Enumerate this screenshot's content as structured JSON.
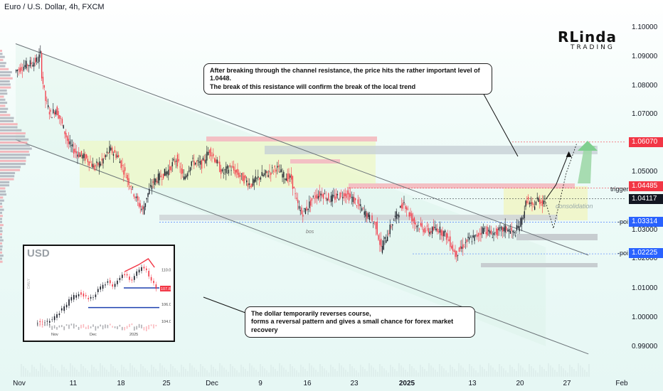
{
  "title": "Euro / U.S. Dollar, 4h, FXCM",
  "logo": {
    "main": "RLinda",
    "sub": "TRADING"
  },
  "callouts": {
    "top": "After breaking through the channel resistance, the price hits the rather important level of 1.0448.\nThe break of this resistance will confirm the break of the local trend",
    "bottom": "The dollar temporarily reverses course,\nforms a reversal pattern and gives a small chance for forex market recovery"
  },
  "labels": {
    "trigger": "trigger",
    "poi1": "-poi",
    "poi2": "-poi",
    "consolidation": "consolidation",
    "bos": "bos"
  },
  "colors": {
    "red_pill": "#f23645",
    "blue_pill": "#2962ff",
    "dark_pill": "#131722",
    "bull": "#131722",
    "bear": "#f23645"
  },
  "chart_data": {
    "type": "candlestick",
    "title": "Euro / U.S. Dollar, 4h, FXCM",
    "y_ticks": [
      "1.10000",
      "1.09000",
      "1.08000",
      "1.07000",
      "1.05000",
      "1.03000",
      "1.02000",
      "1.01000",
      "1.00000",
      "0.99000"
    ],
    "x_ticks": [
      "Nov",
      "11",
      "18",
      "25",
      "Dec",
      "9",
      "16",
      "23",
      "2025",
      "13",
      "20",
      "27",
      "Feb"
    ],
    "price_labels": [
      {
        "text": "1.06070",
        "style": "red"
      },
      {
        "text": "1.04485",
        "style": "red"
      },
      {
        "text": "1.04117",
        "style": "dark"
      },
      {
        "text": "1.03314",
        "style": "blue"
      },
      {
        "text": "1.02225",
        "style": "blue"
      }
    ],
    "path_points": [
      [
        0,
        1.085
      ],
      [
        8,
        1.087
      ],
      [
        14,
        1.088
      ],
      [
        18,
        1.089
      ],
      [
        20,
        1.091
      ],
      [
        21,
        1.084
      ],
      [
        24,
        1.075
      ],
      [
        28,
        1.07
      ],
      [
        32,
        1.072
      ],
      [
        36,
        1.068
      ],
      [
        42,
        1.06
      ],
      [
        48,
        1.057
      ],
      [
        56,
        1.055
      ],
      [
        62,
        1.052
      ],
      [
        68,
        1.054
      ],
      [
        74,
        1.058
      ],
      [
        80,
        1.056
      ],
      [
        86,
        1.05
      ],
      [
        92,
        1.044
      ],
      [
        96,
        1.04
      ],
      [
        100,
        1.037
      ],
      [
        103,
        1.042
      ],
      [
        108,
        1.047
      ],
      [
        114,
        1.049
      ],
      [
        120,
        1.051
      ],
      [
        126,
        1.055
      ],
      [
        132,
        1.048
      ],
      [
        138,
        1.054
      ],
      [
        146,
        1.053
      ],
      [
        152,
        1.058
      ],
      [
        156,
        1.055
      ],
      [
        162,
        1.05
      ],
      [
        168,
        1.052
      ],
      [
        176,
        1.049
      ],
      [
        184,
        1.046
      ],
      [
        192,
        1.049
      ],
      [
        198,
        1.05
      ],
      [
        204,
        1.052
      ],
      [
        210,
        1.049
      ],
      [
        216,
        1.048
      ],
      [
        220,
        1.04
      ],
      [
        224,
        1.036
      ],
      [
        228,
        1.038
      ],
      [
        234,
        1.042
      ],
      [
        240,
        1.043
      ],
      [
        246,
        1.041
      ],
      [
        252,
        1.042
      ],
      [
        258,
        1.043
      ],
      [
        264,
        1.041
      ],
      [
        270,
        1.038
      ],
      [
        276,
        1.035
      ],
      [
        282,
        1.032
      ],
      [
        286,
        1.024
      ],
      [
        290,
        1.028
      ],
      [
        296,
        1.034
      ],
      [
        300,
        1.037
      ],
      [
        304,
        1.04
      ],
      [
        308,
        1.036
      ],
      [
        312,
        1.033
      ],
      [
        318,
        1.031
      ],
      [
        324,
        1.03
      ],
      [
        330,
        1.031
      ],
      [
        336,
        1.029
      ],
      [
        340,
        1.026
      ],
      [
        344,
        1.022
      ],
      [
        348,
        1.024
      ],
      [
        354,
        1.027
      ],
      [
        360,
        1.028
      ],
      [
        366,
        1.031
      ],
      [
        372,
        1.029
      ],
      [
        378,
        1.03
      ],
      [
        384,
        1.031
      ],
      [
        390,
        1.029
      ],
      [
        396,
        1.034
      ],
      [
        400,
        1.041
      ],
      [
        404,
        1.038
      ],
      [
        408,
        1.041
      ],
      [
        412,
        1.04
      ],
      [
        414,
        1.041
      ]
    ],
    "channel": {
      "upper": [
        [
          1.0945,
          0
        ],
        [
          1.0245,
          414
        ]
      ],
      "lower": [
        [
          1.0615,
          0
        ],
        [
          0.9905,
          414
        ]
      ]
    },
    "projection": [
      [
        414,
        1.041
      ],
      [
        422,
        1.046
      ],
      [
        432,
        1.057
      ]
    ],
    "projection_alt": [
      [
        414,
        1.04
      ],
      [
        420,
        1.031
      ],
      [
        430,
        1.05
      ],
      [
        438,
        1.06
      ]
    ]
  },
  "inset": {
    "title": "USD",
    "side_label": "DAILY",
    "y_ticks": [
      "110.00",
      "108.00",
      "106.00",
      "104.00"
    ],
    "price_pill": "107.82",
    "x_ticks": [
      "Nov",
      "Dec",
      "2025"
    ],
    "series": [
      103.9,
      104.0,
      103.8,
      104.1,
      104.5,
      105.1,
      105.6,
      106.4,
      106.9,
      107.2,
      107.0,
      106.5,
      106.9,
      107.6,
      108.2,
      108.6,
      108.1,
      108.9,
      109.6,
      109.2,
      108.8,
      109.7,
      110.2,
      109.8,
      108.9,
      107.8
    ]
  }
}
